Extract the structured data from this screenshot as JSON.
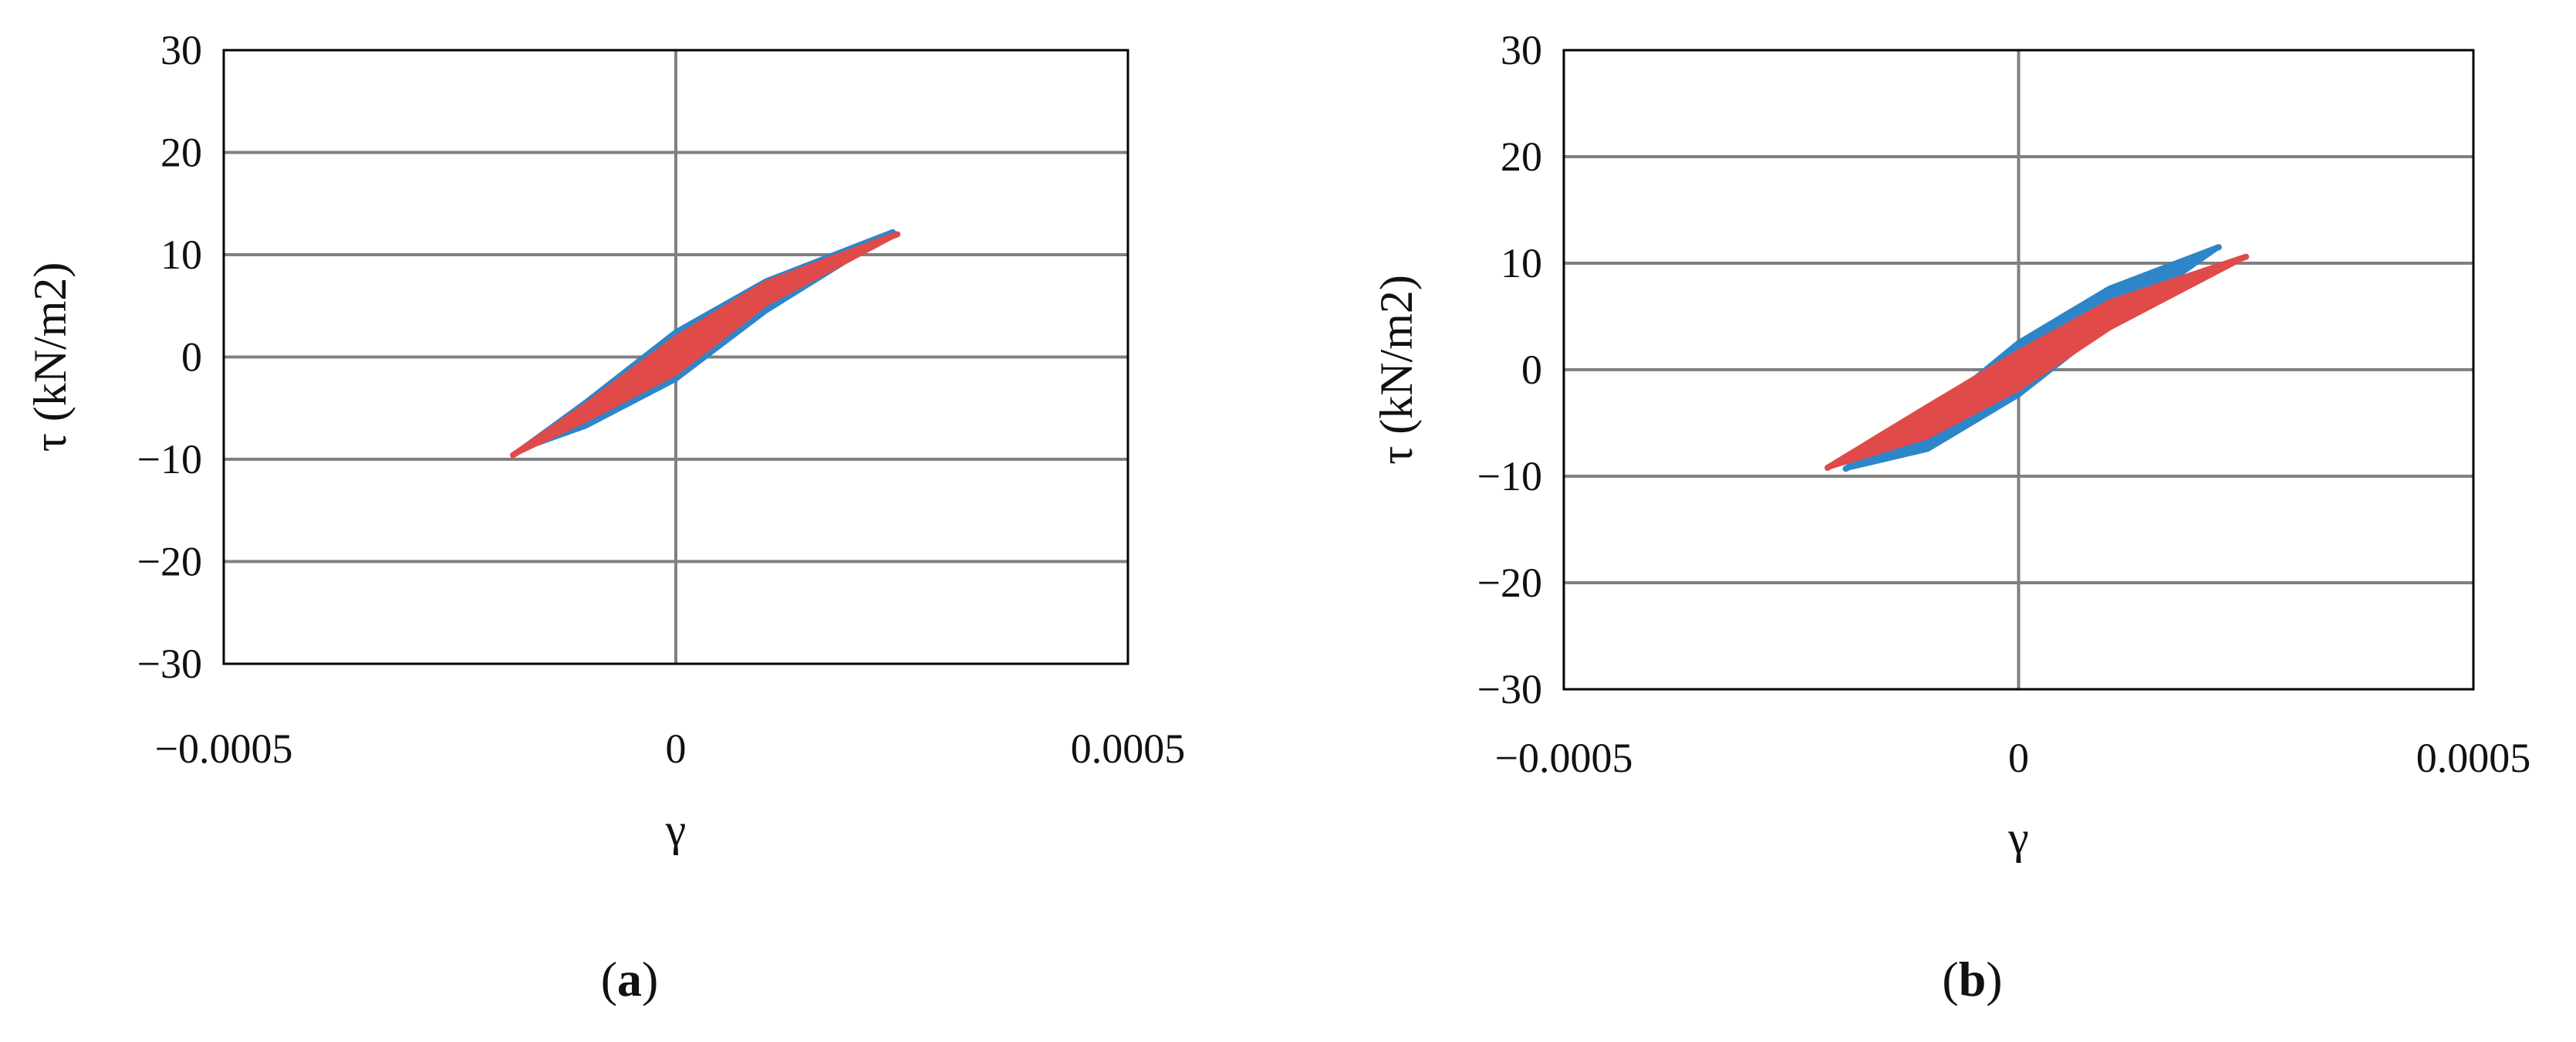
{
  "colors": {
    "series_blue": "#2E86C8",
    "series_red": "#E04B4A",
    "grid": "#808080",
    "frame": "#000000"
  },
  "chart_data": [
    {
      "panel": "a",
      "type": "scatter",
      "title": "",
      "xlabel": "γ",
      "ylabel": "τ (kN/m2)",
      "xlim": [
        -0.0005,
        0.0005
      ],
      "ylim": [
        -30,
        30
      ],
      "xticks": [
        -0.0005,
        0,
        0.0005
      ],
      "xtick_labels": [
        "−0.0005",
        "0",
        "0.0005"
      ],
      "yticks": [
        -30,
        -20,
        -10,
        0,
        10,
        20,
        30
      ],
      "ytick_labels": [
        "−30",
        "−20",
        "−10",
        "0",
        "10",
        "20",
        "30"
      ],
      "grid": "horizontal and vertical at zero",
      "legend": "none",
      "panel_label": "a",
      "series": [
        {
          "color": "#2E86C8",
          "upper": [
            [
              -0.00017,
              -9
            ],
            [
              -0.0001,
              -4.5
            ],
            [
              0,
              2.4
            ],
            [
              0.0001,
              7.4
            ],
            [
              0.00024,
              12.2
            ]
          ],
          "lower": [
            [
              0.00024,
              12.2
            ],
            [
              0.0001,
              4.5
            ],
            [
              0,
              -2.2
            ],
            [
              -0.0001,
              -6.8
            ],
            [
              -0.00017,
              -9
            ]
          ]
        },
        {
          "color": "#E04B4A",
          "upper": [
            [
              -0.00018,
              -9.6
            ],
            [
              -0.0001,
              -4.8
            ],
            [
              0,
              1.8
            ],
            [
              0.0001,
              7.2
            ],
            [
              0.000245,
              12
            ]
          ],
          "lower": [
            [
              0.000245,
              12
            ],
            [
              0.0001,
              5.2
            ],
            [
              0,
              -1.6
            ],
            [
              -0.0001,
              -6.2
            ],
            [
              -0.00018,
              -9.6
            ]
          ]
        }
      ]
    },
    {
      "panel": "b",
      "type": "scatter",
      "title": "",
      "xlabel": "γ",
      "ylabel": "τ (kN/m2)",
      "xlim": [
        -0.0005,
        0.0005
      ],
      "ylim": [
        -30,
        30
      ],
      "xticks": [
        -0.0005,
        0,
        0.0005
      ],
      "xtick_labels": [
        "−0.0005",
        "0",
        "0.0005"
      ],
      "yticks": [
        -30,
        -20,
        -10,
        0,
        10,
        20,
        30
      ],
      "ytick_labels": [
        "−30",
        "−20",
        "−10",
        "0",
        "10",
        "20",
        "30"
      ],
      "grid": "horizontal and vertical at zero",
      "legend": "none",
      "panel_label": "b",
      "series": [
        {
          "color": "#2E86C8",
          "upper": [
            [
              -0.00019,
              -9.3
            ],
            [
              -0.0001,
              -4.5
            ],
            [
              0,
              2.5
            ],
            [
              0.0001,
              7.6
            ],
            [
              0.00022,
              11.5
            ]
          ],
          "lower": [
            [
              0.00022,
              11.5
            ],
            [
              0.0001,
              4.3
            ],
            [
              0,
              -2.4
            ],
            [
              -0.0001,
              -7.5
            ],
            [
              -0.00019,
              -9.3
            ]
          ]
        },
        {
          "color": "#E04B4A",
          "upper": [
            [
              -0.00021,
              -9.2
            ],
            [
              -0.0001,
              -3.5
            ],
            [
              0,
              1.6
            ],
            [
              0.0001,
              6.3
            ],
            [
              0.00025,
              10.6
            ]
          ],
          "lower": [
            [
              0.00025,
              10.6
            ],
            [
              0.0001,
              3.9
            ],
            [
              0,
              -1.8
            ],
            [
              -0.0001,
              -6.3
            ],
            [
              -0.00021,
              -9.2
            ]
          ]
        }
      ]
    }
  ]
}
